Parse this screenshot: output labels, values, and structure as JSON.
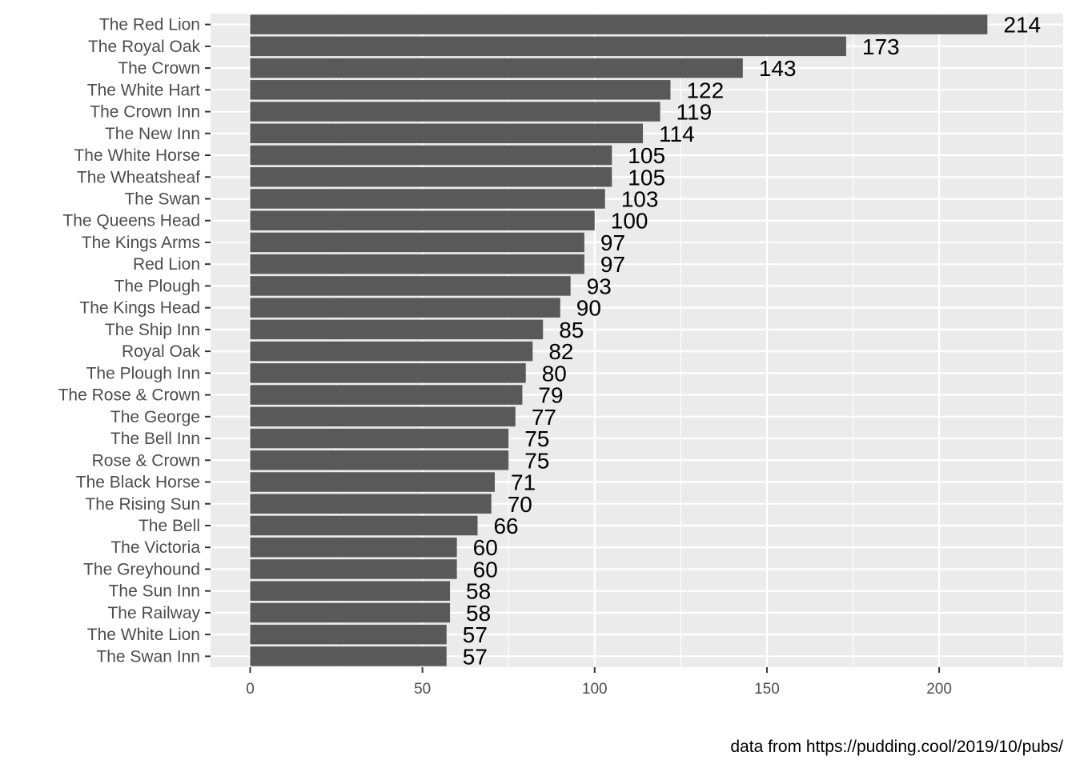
{
  "chart_data": {
    "type": "bar",
    "orientation": "horizontal",
    "title": "",
    "xlabel": "",
    "ylabel": "",
    "caption": "data from https://pudding.cool/2019/10/pubs/",
    "categories": [
      "The Red Lion",
      "The Royal Oak",
      "The Crown",
      "The White Hart",
      "The Crown Inn",
      "The New Inn",
      "The White Horse",
      "The Wheatsheaf",
      "The Swan",
      "The Queens Head",
      "The Kings Arms",
      "Red Lion",
      "The Plough",
      "The Kings Head",
      "The Ship Inn",
      "Royal Oak",
      "The Plough Inn",
      "The Rose & Crown",
      "The George",
      "The Bell Inn",
      "Rose & Crown",
      "The Black Horse",
      "The Rising Sun",
      "The Bell",
      "The Victoria",
      "The Greyhound",
      "The Sun Inn",
      "The Railway",
      "The White Lion",
      "The Swan Inn"
    ],
    "values": [
      214,
      173,
      143,
      122,
      119,
      114,
      105,
      105,
      103,
      100,
      97,
      97,
      93,
      90,
      85,
      82,
      80,
      79,
      77,
      75,
      75,
      71,
      70,
      66,
      60,
      60,
      58,
      58,
      57,
      57
    ],
    "xlim": [
      -11.5,
      236
    ],
    "xticks": [
      0,
      50,
      100,
      150,
      200
    ],
    "grid": true,
    "legend": "none",
    "colors": {
      "bar": "#595959",
      "panel": "#ebebeb",
      "grid": "#ffffff"
    }
  }
}
